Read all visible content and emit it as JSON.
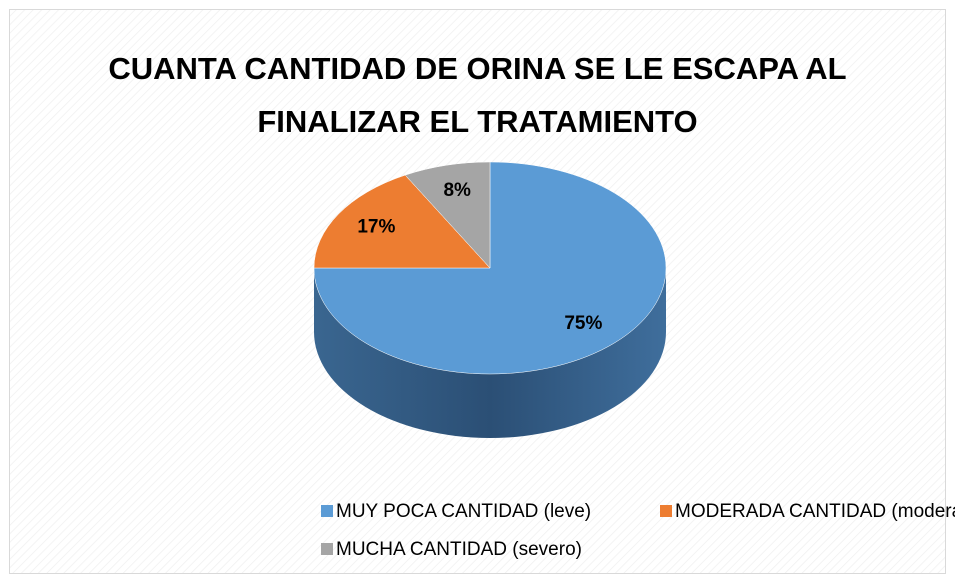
{
  "chart_data": {
    "type": "pie",
    "title": "CUANTA CANTIDAD DE ORINA SE LE ESCAPA AL FINALIZAR EL TRATAMIENTO",
    "categories": [
      "MUY POCA CANTIDAD (leve)",
      "MODERADA CANTIDAD (moderado)",
      "MUCHA CANTIDAD (severo)"
    ],
    "values": [
      75,
      17,
      8
    ],
    "value_labels": [
      "75%",
      "17%",
      "8%"
    ],
    "colors": [
      "#5b9bd5",
      "#ed7d31",
      "#a5a5a5"
    ],
    "legend": "bottom"
  }
}
